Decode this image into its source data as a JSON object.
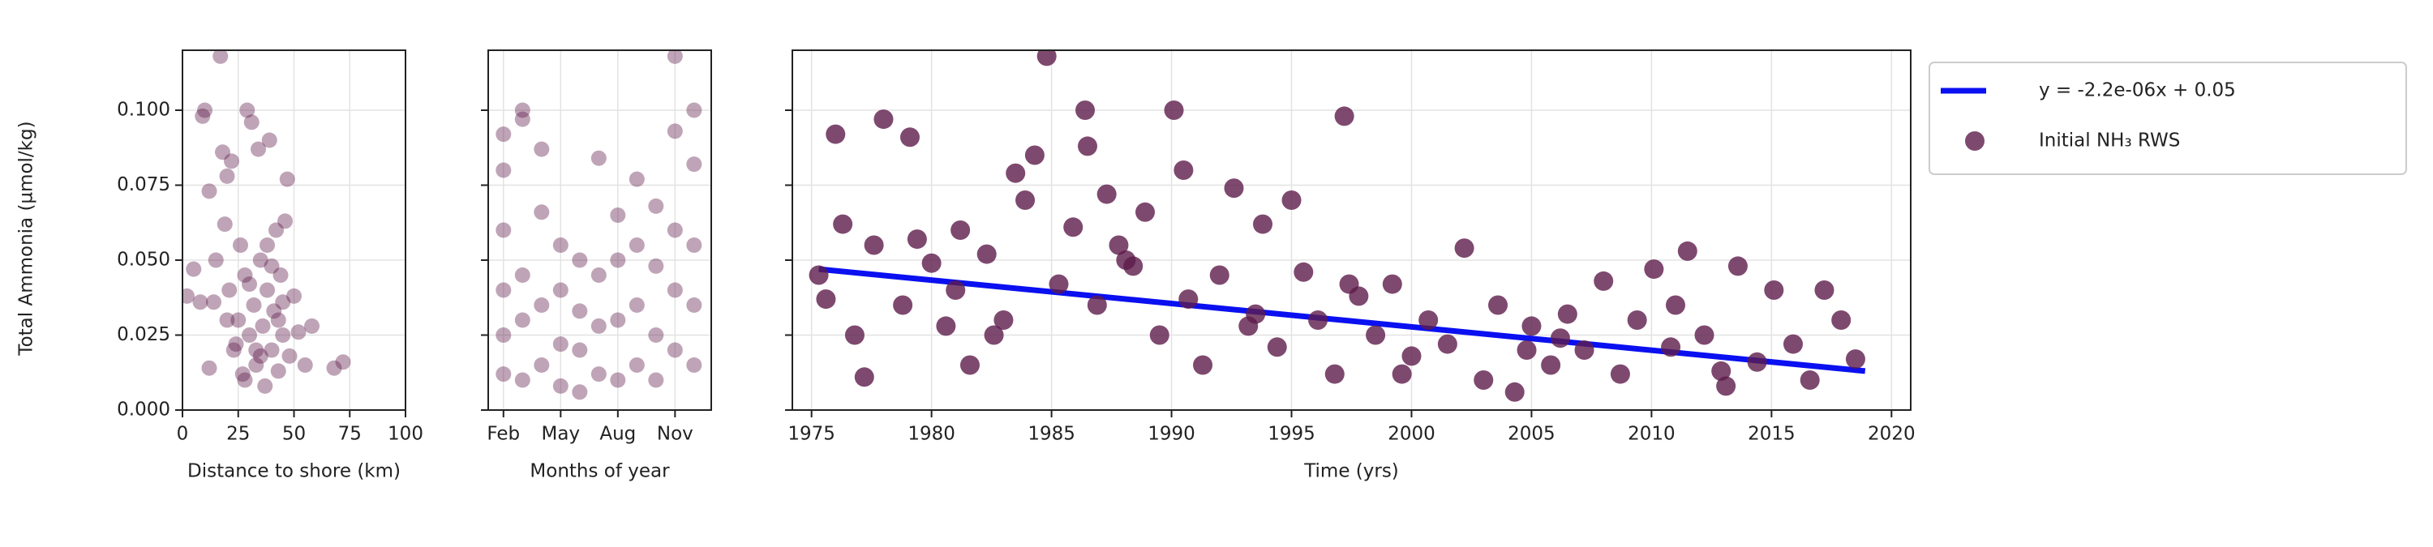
{
  "chart_data": [
    {
      "type": "scatter",
      "xlabel": "Distance to shore (km)",
      "ylabel": "Total Ammonia (µmol/kg)",
      "xlim": [
        0,
        100
      ],
      "xticks": [
        0,
        25,
        50,
        75,
        100
      ],
      "ylim": [
        0,
        0.12
      ],
      "yticks": [
        {
          "value": 0,
          "label": "0.000"
        },
        {
          "value": 0.025,
          "label": "0.025"
        },
        {
          "value": 0.05,
          "label": "0.050"
        },
        {
          "value": 0.075,
          "label": "0.075"
        },
        {
          "value": 0.1,
          "label": "0.100"
        }
      ],
      "grid": true,
      "ytick_labels": true,
      "marker_alpha": 0.4,
      "series": [
        {
          "color": "#5e1b4b",
          "x": [
            2,
            5,
            8,
            9,
            10,
            12,
            12,
            14,
            15,
            17,
            18,
            19,
            20,
            21,
            22,
            23,
            25,
            26,
            27,
            28,
            29,
            30,
            31,
            32,
            33,
            34,
            35,
            36,
            37,
            38,
            39,
            40,
            41,
            42,
            43,
            44,
            45,
            46,
            47,
            48,
            50,
            52,
            55,
            58,
            68,
            72,
            20,
            24,
            30,
            35,
            40,
            45,
            28,
            33,
            38,
            43
          ],
          "values": [
            0.038,
            0.047,
            0.036,
            0.098,
            0.1,
            0.073,
            0.014,
            0.036,
            0.05,
            0.118,
            0.086,
            0.062,
            0.078,
            0.04,
            0.083,
            0.02,
            0.03,
            0.055,
            0.012,
            0.045,
            0.1,
            0.025,
            0.096,
            0.035,
            0.015,
            0.087,
            0.05,
            0.028,
            0.008,
            0.04,
            0.09,
            0.02,
            0.033,
            0.06,
            0.013,
            0.045,
            0.025,
            0.063,
            0.077,
            0.018,
            0.038,
            0.026,
            0.015,
            0.028,
            0.014,
            0.016,
            0.03,
            0.022,
            0.042,
            0.018,
            0.048,
            0.036,
            0.01,
            0.02,
            0.055,
            0.03
          ]
        }
      ]
    },
    {
      "type": "scatter",
      "xlabel": "Months of year",
      "xlim": [
        1.2,
        12.9
      ],
      "xticks": [
        {
          "value": 2,
          "label": "Feb"
        },
        {
          "value": 5,
          "label": "May"
        },
        {
          "value": 8,
          "label": "Aug"
        },
        {
          "value": 11,
          "label": "Nov"
        }
      ],
      "ylim": [
        0,
        0.12
      ],
      "yticks": [
        0,
        0.025,
        0.05,
        0.075,
        0.1
      ],
      "grid": true,
      "ytick_labels": false,
      "marker_alpha": 0.4,
      "series": [
        {
          "color": "#5e1b4b",
          "x": [
            2,
            2,
            2,
            2,
            2,
            2,
            3,
            3,
            3,
            3,
            3,
            4,
            4,
            4,
            4,
            5,
            5,
            5,
            5,
            6,
            6,
            6,
            6,
            7,
            7,
            7,
            7,
            8,
            8,
            8,
            8,
            9,
            9,
            9,
            9,
            10,
            10,
            10,
            10,
            11,
            11,
            11,
            11,
            11,
            12,
            12,
            12,
            12,
            12
          ],
          "values": [
            0.092,
            0.08,
            0.06,
            0.04,
            0.025,
            0.012,
            0.1,
            0.097,
            0.045,
            0.03,
            0.01,
            0.087,
            0.066,
            0.035,
            0.015,
            0.055,
            0.04,
            0.022,
            0.008,
            0.05,
            0.033,
            0.02,
            0.006,
            0.084,
            0.045,
            0.028,
            0.012,
            0.065,
            0.05,
            0.03,
            0.01,
            0.077,
            0.055,
            0.035,
            0.015,
            0.068,
            0.048,
            0.025,
            0.01,
            0.118,
            0.093,
            0.06,
            0.04,
            0.02,
            0.1,
            0.082,
            0.055,
            0.035,
            0.015
          ]
        }
      ]
    },
    {
      "type": "scatter",
      "xlabel": "Time (yrs)",
      "xlim": [
        1974.2,
        2020.8
      ],
      "xticks": [
        1975,
        1980,
        1985,
        1990,
        1995,
        2000,
        2005,
        2010,
        2015,
        2020
      ],
      "ylim": [
        0,
        0.12
      ],
      "yticks": [
        0,
        0.025,
        0.05,
        0.075,
        0.1
      ],
      "grid": true,
      "ytick_labels": false,
      "marker_alpha": 0.8,
      "legend": "outside upper right",
      "series": [
        {
          "name": "y = -2.2e-06x + 0.05",
          "kind": "line",
          "color": "#0a10f0",
          "x": [
            1975.3,
            2018.9
          ],
          "values": [
            0.047,
            0.013
          ]
        },
        {
          "name": "Initial NH₃ RWS",
          "color": "#5e1b4b",
          "x": [
            1975.3,
            1975.6,
            1976,
            1976.3,
            1976.8,
            1977.2,
            1977.6,
            1978,
            1978.8,
            1979.1,
            1979.4,
            1980,
            1980.6,
            1981,
            1981.6,
            1982.3,
            1983,
            1983.5,
            1983.9,
            1984.3,
            1984.8,
            1985.3,
            1985.9,
            1986.4,
            1986.9,
            1987.3,
            1987.8,
            1988.4,
            1988.9,
            1989.5,
            1990.1,
            1990.7,
            1991.3,
            1992,
            1992.6,
            1993.2,
            1993.8,
            1994.4,
            1995,
            1995.5,
            1996.1,
            1996.8,
            1997.2,
            1997.8,
            1998.5,
            1999.2,
            2000,
            2000.7,
            2001.5,
            2002.2,
            2003,
            2003.6,
            2004.3,
            2005,
            2005.8,
            2006.5,
            2007.2,
            2008,
            2008.7,
            2009.4,
            2010.1,
            2010.8,
            2011.5,
            2012.2,
            2012.9,
            2013.6,
            2014.4,
            2015.1,
            2015.9,
            2016.6,
            2017.2,
            2017.9,
            2018.5,
            1981.2,
            1986.5,
            1990.5,
            1997.4,
            2004.8,
            2011,
            1982.6,
            1988.1,
            1993.5,
            1999.6,
            2006.2,
            2013.1
          ],
          "values": [
            0.045,
            0.037,
            0.092,
            0.062,
            0.025,
            0.011,
            0.055,
            0.097,
            0.035,
            0.091,
            0.057,
            0.049,
            0.028,
            0.04,
            0.015,
            0.052,
            0.03,
            0.079,
            0.07,
            0.085,
            0.118,
            0.042,
            0.061,
            0.1,
            0.035,
            0.072,
            0.055,
            0.048,
            0.066,
            0.025,
            0.1,
            0.037,
            0.015,
            0.045,
            0.074,
            0.028,
            0.062,
            0.021,
            0.07,
            0.046,
            0.03,
            0.012,
            0.098,
            0.038,
            0.025,
            0.042,
            0.018,
            0.03,
            0.022,
            0.054,
            0.01,
            0.035,
            0.006,
            0.028,
            0.015,
            0.032,
            0.02,
            0.043,
            0.012,
            0.03,
            0.047,
            0.021,
            0.053,
            0.025,
            0.013,
            0.048,
            0.016,
            0.04,
            0.022,
            0.01,
            0.04,
            0.03,
            0.017,
            0.06,
            0.088,
            0.08,
            0.042,
            0.02,
            0.035,
            0.025,
            0.05,
            0.032,
            0.012,
            0.024,
            0.008
          ]
        }
      ]
    }
  ]
}
